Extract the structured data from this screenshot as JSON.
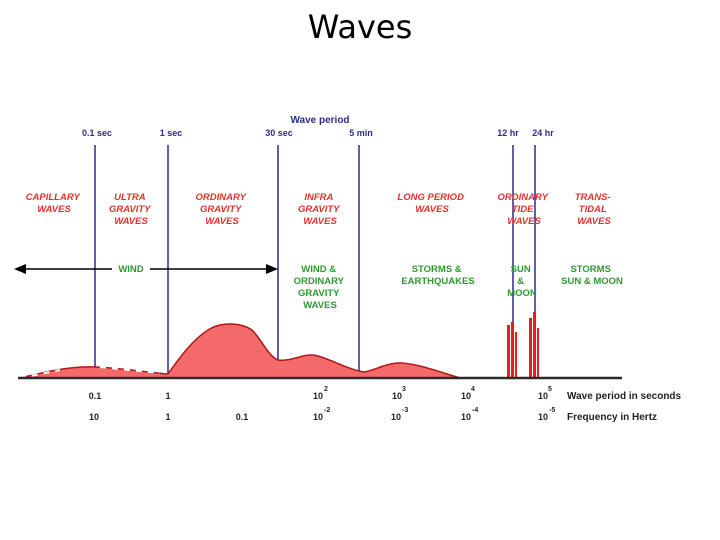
{
  "title": "Waves",
  "header": "Wave period",
  "period_markers": [
    "0.1 sec",
    "1 sec",
    "30 sec",
    "5 min",
    "12 hr",
    "24 hr"
  ],
  "categories": [
    [
      "CAPILLARY",
      "WAVES"
    ],
    [
      "ULTRA",
      "GRAVITY",
      "WAVES"
    ],
    [
      "ORDINARY",
      "GRAVITY",
      "WAVES"
    ],
    [
      "INFRA",
      "GRAVITY",
      "WAVES"
    ],
    [
      "LONG PERIOD",
      "WAVES"
    ],
    [
      "ORDINARY",
      "TIDE",
      "WAVES"
    ],
    [
      "TRANS-",
      "TIDAL",
      "WAVES"
    ]
  ],
  "forces": [
    [
      "WIND"
    ],
    [
      "WIND &",
      "ORDINARY",
      "GRAVITY",
      "WAVES"
    ],
    [
      "STORMS &",
      "EARTHQUAKES"
    ],
    [
      "SUN",
      "&",
      "MOON"
    ],
    [
      "STORMS",
      "SUN & MOON"
    ]
  ],
  "period_ticks": [
    {
      "base": "0.1",
      "exp": ""
    },
    {
      "base": "1",
      "exp": ""
    },
    {
      "base": "10",
      "exp": "2"
    },
    {
      "base": "10",
      "exp": "3"
    },
    {
      "base": "10",
      "exp": "4"
    },
    {
      "base": "10",
      "exp": "5"
    }
  ],
  "frequency_ticks": [
    {
      "base": "10",
      "exp": ""
    },
    {
      "base": "1",
      "exp": ""
    },
    {
      "base": "0.1",
      "exp": ""
    },
    {
      "base": "10",
      "exp": "-2"
    },
    {
      "base": "10",
      "exp": "-3"
    },
    {
      "base": "10",
      "exp": "-4"
    },
    {
      "base": "10",
      "exp": "-5"
    }
  ],
  "axis_labels": {
    "period": "Wave period in seconds",
    "frequency": "Frequency in Hertz"
  },
  "colors": {
    "category": "#e0322a",
    "force": "#2f9a2f",
    "marker": "#2b2b8c",
    "energy_fill": "#f46a6a",
    "energy_line": "#b01818"
  }
}
